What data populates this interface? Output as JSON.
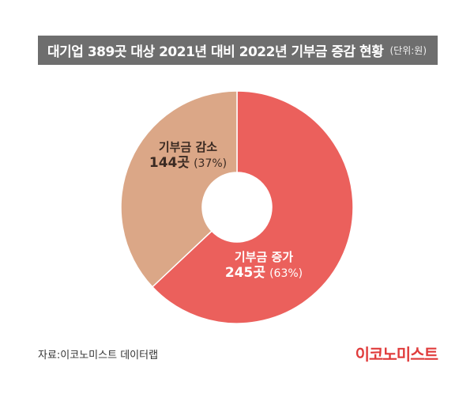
{
  "header": {
    "title": "대기업 389곳 대상 2021년 대비 2022년 기부금 증감 현황",
    "unit": "(단위:원)"
  },
  "chart_data": {
    "type": "pie",
    "donut": true,
    "slices": [
      {
        "name": "기부금 증가",
        "count": "245곳",
        "pct": "(63%)",
        "value": 245,
        "percent": 63,
        "color": "#eb605c"
      },
      {
        "name": "기부금 감소",
        "count": "144곳",
        "pct": "(37%)",
        "value": 144,
        "percent": 37,
        "color": "#dba787"
      }
    ]
  },
  "footer": {
    "source": "자료:이코노미스트 데이터랩",
    "logo": "이코노미스트"
  }
}
